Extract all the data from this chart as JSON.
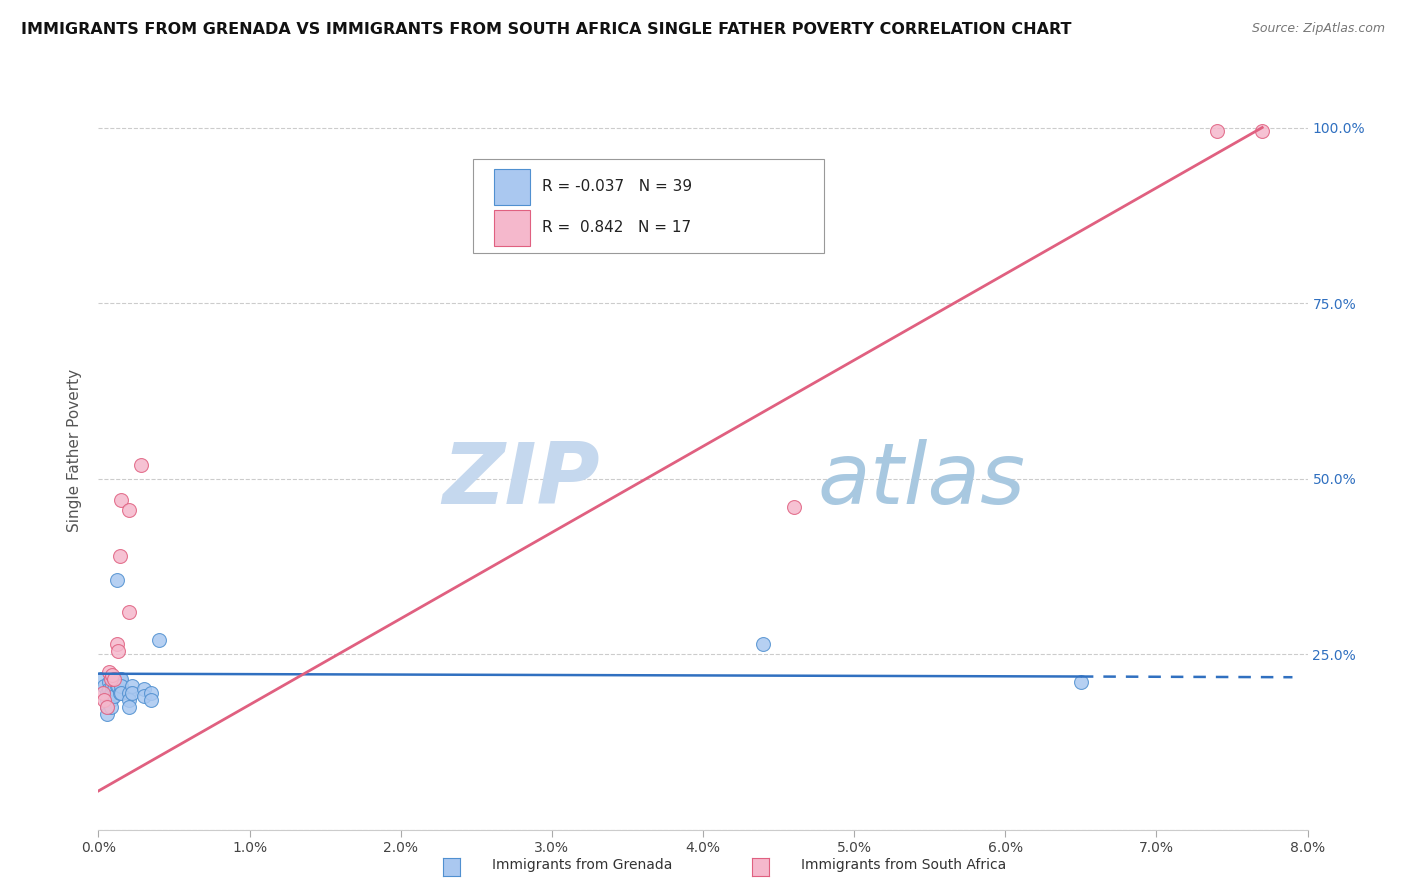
{
  "title": "IMMIGRANTS FROM GRENADA VS IMMIGRANTS FROM SOUTH AFRICA SINGLE FATHER POVERTY CORRELATION CHART",
  "source": "Source: ZipAtlas.com",
  "ylabel": "Single Father Poverty",
  "legend_label1": "Immigrants from Grenada",
  "legend_label2": "Immigrants from South Africa",
  "r1": "-0.037",
  "n1": "39",
  "r2": "0.842",
  "n2": "17",
  "x_min": 0.0,
  "x_max": 0.08,
  "y_min": 0.0,
  "y_max": 1.08,
  "ytick_vals": [
    0.0,
    0.25,
    0.5,
    0.75,
    1.0
  ],
  "ytick_labels": [
    "",
    "25.0%",
    "50.0%",
    "75.0%",
    "100.0%"
  ],
  "xtick_vals": [
    0.0,
    0.01,
    0.02,
    0.03,
    0.04,
    0.05,
    0.06,
    0.07,
    0.08
  ],
  "xtick_labels": [
    "0.0%",
    "1.0%",
    "2.0%",
    "3.0%",
    "4.0%",
    "5.0%",
    "6.0%",
    "7.0%",
    "8.0%"
  ],
  "color_grenada_fill": "#aac8f0",
  "color_grenada_edge": "#5090d0",
  "color_sa_fill": "#f5b8cc",
  "color_sa_edge": "#e06080",
  "color_grenada_line": "#3070c0",
  "color_sa_line": "#e06080",
  "watermark_color1": "#c5d8ee",
  "watermark_color2": "#a8c8e0",
  "background_color": "#ffffff",
  "grenada_points": [
    [
      0.0002,
      0.215
    ],
    [
      0.0004,
      0.205
    ],
    [
      0.0006,
      0.195
    ],
    [
      0.0006,
      0.185
    ],
    [
      0.0006,
      0.175
    ],
    [
      0.0006,
      0.165
    ],
    [
      0.0007,
      0.21
    ],
    [
      0.0007,
      0.2
    ],
    [
      0.0008,
      0.195
    ],
    [
      0.0008,
      0.185
    ],
    [
      0.0008,
      0.175
    ],
    [
      0.0009,
      0.215
    ],
    [
      0.0009,
      0.205
    ],
    [
      0.0009,
      0.195
    ],
    [
      0.001,
      0.21
    ],
    [
      0.001,
      0.2
    ],
    [
      0.001,
      0.19
    ],
    [
      0.0012,
      0.355
    ],
    [
      0.0012,
      0.215
    ],
    [
      0.0012,
      0.205
    ],
    [
      0.0013,
      0.215
    ],
    [
      0.0013,
      0.205
    ],
    [
      0.0014,
      0.215
    ],
    [
      0.0014,
      0.195
    ],
    [
      0.0015,
      0.215
    ],
    [
      0.0015,
      0.205
    ],
    [
      0.0015,
      0.195
    ],
    [
      0.002,
      0.195
    ],
    [
      0.002,
      0.185
    ],
    [
      0.002,
      0.175
    ],
    [
      0.0022,
      0.205
    ],
    [
      0.0022,
      0.195
    ],
    [
      0.003,
      0.2
    ],
    [
      0.003,
      0.19
    ],
    [
      0.0035,
      0.195
    ],
    [
      0.0035,
      0.185
    ],
    [
      0.004,
      0.27
    ],
    [
      0.044,
      0.265
    ],
    [
      0.065,
      0.21
    ]
  ],
  "south_africa_points": [
    [
      0.0003,
      0.195
    ],
    [
      0.0004,
      0.185
    ],
    [
      0.0006,
      0.175
    ],
    [
      0.0007,
      0.225
    ],
    [
      0.0008,
      0.215
    ],
    [
      0.0009,
      0.22
    ],
    [
      0.001,
      0.215
    ],
    [
      0.0012,
      0.265
    ],
    [
      0.0013,
      0.255
    ],
    [
      0.0014,
      0.39
    ],
    [
      0.0015,
      0.47
    ],
    [
      0.002,
      0.455
    ],
    [
      0.002,
      0.31
    ],
    [
      0.0028,
      0.52
    ],
    [
      0.046,
      0.46
    ],
    [
      0.074,
      0.995
    ],
    [
      0.077,
      0.995
    ]
  ],
  "grenada_line_x1": 0.0,
  "grenada_line_y1": 0.222,
  "grenada_line_x2": 0.065,
  "grenada_line_y2": 0.218,
  "grenada_line_x3": 0.065,
  "grenada_line_y3": 0.218,
  "grenada_line_x4": 0.079,
  "grenada_line_y4": 0.217,
  "sa_line_x1": 0.0,
  "sa_line_y1": 0.055,
  "sa_line_x2": 0.077,
  "sa_line_y2": 1.0
}
